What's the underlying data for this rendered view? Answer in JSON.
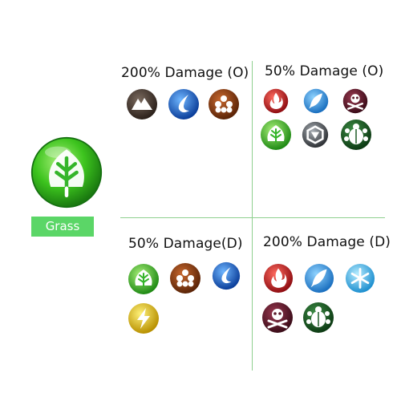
{
  "type_name": "Grass",
  "quadrants": {
    "top_left": {
      "title": "200% Damage (O)",
      "icons": [
        "rock-icon",
        "water-icon",
        "ground-icon"
      ]
    },
    "top_right": {
      "title": "50% Damage (O)",
      "icons": [
        "fire-icon",
        "flying-icon",
        "poison-icon",
        "grass-icon",
        "steel-icon",
        "bug-icon"
      ]
    },
    "bottom_left": {
      "title": "50% Damage(D)",
      "icons": [
        "grass-icon",
        "ground-icon",
        "water-icon",
        "electric-icon"
      ]
    },
    "bottom_right": {
      "title": "200% Damage (D)",
      "icons": [
        "fire-icon",
        "flying-icon",
        "ice-icon",
        "poison-icon",
        "bug-icon"
      ]
    }
  },
  "colors": {
    "grass": "#34b72a",
    "rock": "#4a3a30",
    "water": "#1f6fd1",
    "ground": "#8a3e15",
    "fire": "#c9252a",
    "flying": "#3fa3e5",
    "poison": "#5a1a2a",
    "steel": "#5d6166",
    "bug": "#1e5a26",
    "electric": "#e8c400",
    "ice": "#3bb6ea",
    "label_bg": "#5bd667"
  }
}
